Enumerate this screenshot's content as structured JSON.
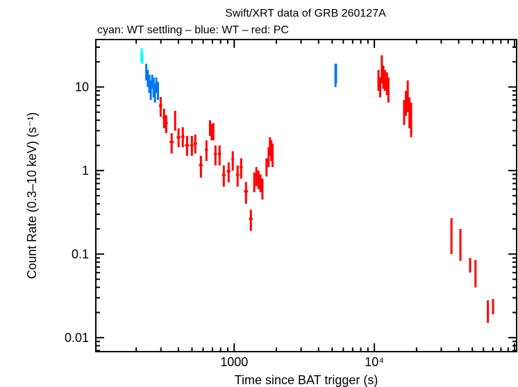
{
  "chart_data": {
    "type": "scatter",
    "title": "Swift/XRT data of GRB 260127A",
    "subtitle": "cyan: WT settling – blue: WT – red: PC",
    "xlabel": "Time since BAT trigger (s)",
    "ylabel": "Count Rate (0.3–10 keV) (s⁻¹)",
    "xscale": "log",
    "yscale": "log",
    "xlim": [
      103,
      103500
    ],
    "ylim": [
      0.0068,
      37
    ],
    "x_tick_labels": [
      {
        "value": 1000,
        "label": "1000"
      },
      {
        "value": 10000,
        "label": "10⁴"
      }
    ],
    "y_tick_labels": [
      {
        "value": 10,
        "label": "10"
      },
      {
        "value": 1,
        "label": "1"
      },
      {
        "value": 0.1,
        "label": "0.1"
      },
      {
        "value": 0.01,
        "label": "0.01"
      }
    ],
    "grid": false,
    "series": [
      {
        "mode": "WT settling",
        "color": "#00ffff",
        "points": [
          [
            218,
            24,
            20,
            29
          ],
          [
            221,
            22,
            19,
            26
          ]
        ]
      },
      {
        "mode": "WT",
        "color": "#0077ee",
        "points": [
          [
            236,
            15,
            12,
            19
          ],
          [
            242,
            13,
            10,
            16
          ],
          [
            248,
            11,
            8.5,
            14
          ],
          [
            254,
            9.5,
            7,
            12
          ],
          [
            260,
            12,
            9.5,
            14
          ],
          [
            266,
            10,
            7.5,
            13
          ],
          [
            272,
            8.5,
            6.5,
            11
          ],
          [
            278,
            11,
            8.5,
            13
          ],
          [
            286,
            9,
            7,
            11.5
          ],
          [
            5280,
            13,
            10,
            19
          ],
          [
            5330,
            15,
            11,
            19
          ]
        ]
      },
      {
        "mode": "PC",
        "color": "#ff0000",
        "points": [
          [
            299,
            6.0,
            4.4,
            7.6,
            8
          ],
          [
            316,
            4.3,
            3.2,
            5.5,
            8
          ],
          [
            327,
            3.7,
            2.8,
            4.6,
            9
          ],
          [
            358,
            2.2,
            1.6,
            2.8,
            12
          ],
          [
            379,
            4.0,
            3.0,
            5.2,
            6
          ],
          [
            401,
            2.5,
            1.9,
            3.2,
            12
          ],
          [
            430,
            2.55,
            1.9,
            3.3,
            12
          ],
          [
            461,
            2.0,
            1.5,
            2.6,
            15
          ],
          [
            499,
            2.0,
            1.5,
            2.6,
            14
          ],
          [
            528,
            2.1,
            1.6,
            2.7,
            15
          ],
          [
            579,
            1.16,
            0.82,
            1.5,
            18
          ],
          [
            634,
            1.77,
            1.3,
            2.3,
            15
          ],
          [
            672,
            3.3,
            2.6,
            4.0,
            6
          ],
          [
            690,
            2.9,
            2.3,
            3.6,
            6
          ],
          [
            710,
            3.0,
            2.3,
            3.7,
            14
          ],
          [
            735,
            1.58,
            1.15,
            2.0,
            18
          ],
          [
            787,
            1.58,
            1.15,
            2.0,
            20
          ],
          [
            843,
            0.89,
            0.64,
            1.15,
            25
          ],
          [
            913,
            0.98,
            0.72,
            1.25,
            28
          ],
          [
            977,
            1.36,
            1.0,
            1.7,
            22
          ],
          [
            1058,
            0.89,
            0.64,
            1.15,
            30
          ],
          [
            1121,
            1.1,
            0.8,
            1.4,
            30
          ],
          [
            1214,
            0.565,
            0.4,
            0.73,
            40
          ],
          [
            1315,
            0.264,
            0.19,
            0.34,
            40
          ],
          [
            1390,
            0.72,
            0.55,
            0.95,
            20
          ],
          [
            1440,
            0.85,
            0.65,
            1.1,
            20
          ],
          [
            1490,
            0.78,
            0.6,
            1.0,
            20
          ],
          [
            1540,
            0.7,
            0.55,
            0.9,
            20
          ],
          [
            1590,
            0.62,
            0.45,
            0.8,
            25
          ],
          [
            1700,
            1.1,
            0.85,
            1.4,
            20
          ],
          [
            1760,
            1.5,
            1.1,
            1.9,
            20
          ],
          [
            1800,
            2.0,
            1.5,
            2.5,
            20
          ],
          [
            1840,
            1.8,
            1.3,
            2.3,
            20
          ],
          [
            1880,
            1.6,
            1.1,
            2.1,
            20
          ],
          [
            10700,
            12,
            9,
            16,
            50
          ],
          [
            11000,
            10,
            7.5,
            13,
            80
          ],
          [
            11300,
            15,
            11,
            24,
            80
          ],
          [
            11600,
            13,
            9.5,
            18,
            80
          ],
          [
            11900,
            12,
            9,
            16,
            80
          ],
          [
            12300,
            11,
            8,
            15,
            80
          ],
          [
            12600,
            9,
            6.5,
            13,
            80
          ],
          [
            16300,
            5,
            3.5,
            7,
            100
          ],
          [
            16800,
            6.5,
            4.5,
            9,
            100
          ],
          [
            17300,
            7.5,
            5,
            12,
            100
          ],
          [
            17800,
            5,
            3.2,
            7.5,
            100
          ],
          [
            18300,
            4.5,
            2.5,
            6.5,
            100
          ],
          [
            35500,
            0.15,
            0.1,
            0.27,
            300
          ],
          [
            41100,
            0.12,
            0.083,
            0.2,
            300
          ],
          [
            48200,
            0.075,
            0.06,
            0.09,
            400
          ],
          [
            52700,
            0.055,
            0.04,
            0.085,
            500
          ],
          [
            64600,
            0.02,
            0.015,
            0.028,
            1000
          ],
          [
            70300,
            0.024,
            0.019,
            0.029,
            900
          ]
        ]
      }
    ]
  }
}
